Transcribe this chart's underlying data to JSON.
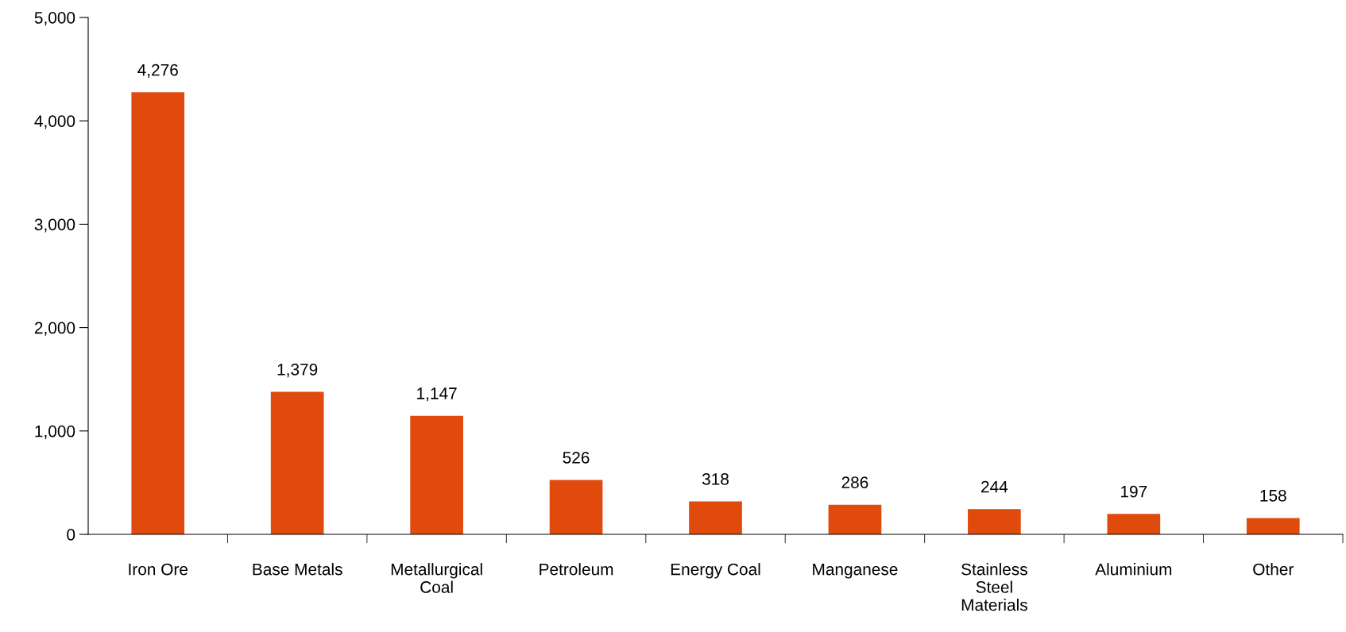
{
  "chart_data": {
    "type": "bar",
    "categories": [
      "Iron Ore",
      "Base Metals",
      "Metallurgical\nCoal",
      "Petroleum",
      "Energy Coal",
      "Manganese",
      "Stainless\nSteel\nMaterials",
      "Aluminium",
      "Other"
    ],
    "values": [
      4276,
      1379,
      1147,
      526,
      318,
      286,
      244,
      197,
      158
    ],
    "color": "#e04a0c",
    "ylim": [
      0,
      5000
    ],
    "yticks": [
      {
        "value": 0,
        "label": "0"
      },
      {
        "value": 1000,
        "label": "1,000"
      },
      {
        "value": 2000,
        "label": "2,000"
      },
      {
        "value": 3000,
        "label": "3,000"
      },
      {
        "value": 4000,
        "label": "4,000"
      },
      {
        "value": 5000,
        "label": "5,000"
      }
    ],
    "value_labels": [
      "4,276",
      "1,379",
      "1,147",
      "526",
      "318",
      "286",
      "244",
      "197",
      "158"
    ],
    "grid": false,
    "legend": false
  }
}
